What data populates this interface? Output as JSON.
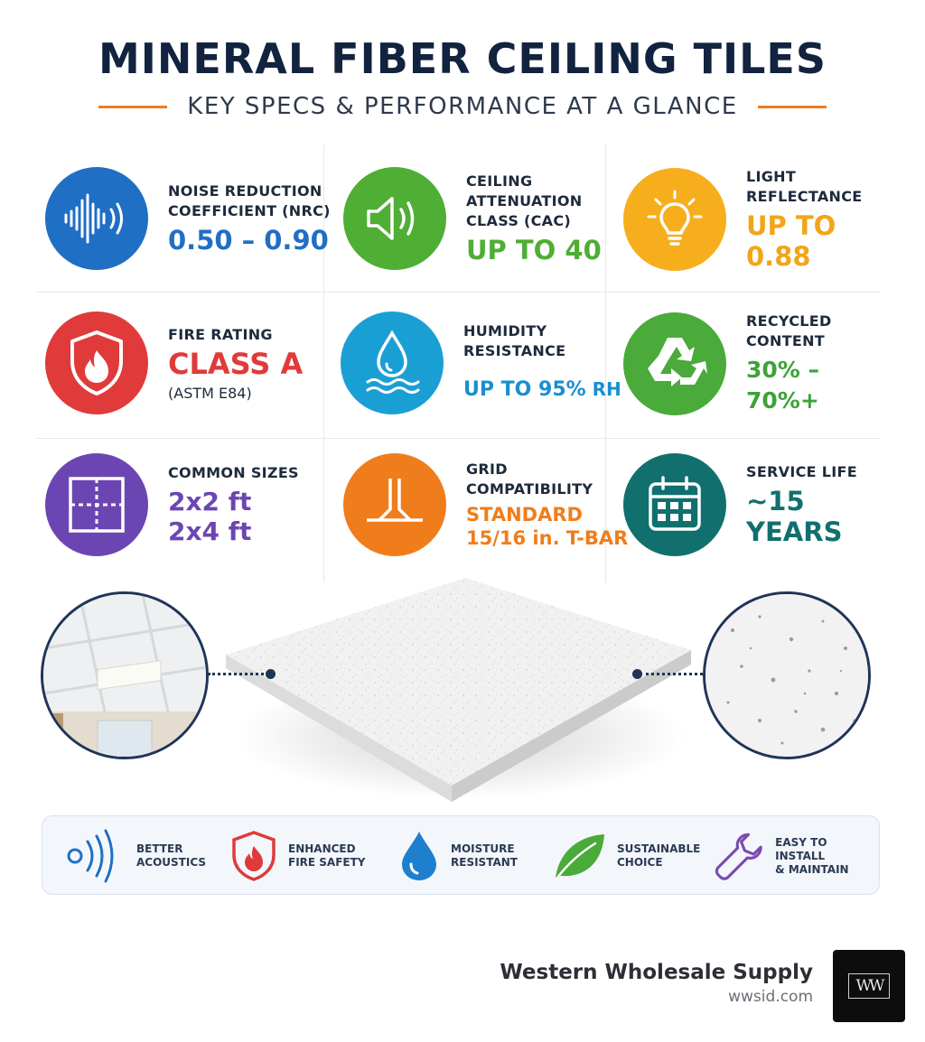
{
  "header": {
    "title": "MINERAL FIBER CEILING TILES",
    "subtitle": "KEY SPECS & PERFORMANCE AT A GLANCE"
  },
  "specs": [
    {
      "id": "nrc",
      "icon": "sound-wave-icon",
      "color": "#1f6fc4",
      "label": "NOISE REDUCTION\nCOEFFICIENT (NRC)",
      "value": "0.50 – 0.90"
    },
    {
      "id": "cac",
      "icon": "speaker-icon",
      "color": "#4fae34",
      "label": "CEILING\nATTENUATION\nCLASS (CAC)",
      "value": "UP TO 40"
    },
    {
      "id": "light",
      "icon": "lightbulb-icon",
      "color": "#f6ae1c",
      "label": "LIGHT\nREFLECTANCE",
      "value": "UP TO 0.88"
    },
    {
      "id": "fire",
      "icon": "fire-shield-icon",
      "color": "#e03a3a",
      "label": "FIRE RATING",
      "value": "CLASS A",
      "note": "(ASTM E84)"
    },
    {
      "id": "humidity",
      "icon": "water-drop-icon",
      "color": "#1a9fd4",
      "label": "HUMIDITY\nRESISTANCE",
      "value": "UP TO 95%",
      "unit": " RH"
    },
    {
      "id": "recycled",
      "icon": "recycle-icon",
      "color": "#4aaa3a",
      "label": "RECYCLED\nCONTENT",
      "value": "30% – 70%+"
    },
    {
      "id": "sizes",
      "icon": "tile-grid-icon",
      "color": "#6b46b2",
      "label": "COMMON SIZES",
      "value": "2x2 ft\n2x4 ft"
    },
    {
      "id": "grid",
      "icon": "t-bar-icon",
      "color": "#f07d1c",
      "label": "GRID\nCOMPATIBILITY",
      "value": "STANDARD\n15/16 in. T-BAR"
    },
    {
      "id": "life",
      "icon": "calendar-icon",
      "color": "#11706e",
      "label": "SERVICE LIFE",
      "value": "~15 YEARS"
    }
  ],
  "benefits": [
    {
      "icon": "acoustic-waves-icon",
      "label": "BETTER\nACOUSTICS"
    },
    {
      "icon": "fire-shield-icon",
      "label": "ENHANCED\nFIRE SAFETY"
    },
    {
      "icon": "water-drop-icon",
      "label": "MOISTURE\nRESISTANT"
    },
    {
      "icon": "leaf-icon",
      "label": "SUSTAINABLE\nCHOICE"
    },
    {
      "icon": "wrench-icon",
      "label": "EASY TO INSTALL\n& MAINTAIN"
    }
  ],
  "brand": {
    "name": "Western Wholesale Supply",
    "url": "wwsid.com",
    "logo": "WW"
  }
}
